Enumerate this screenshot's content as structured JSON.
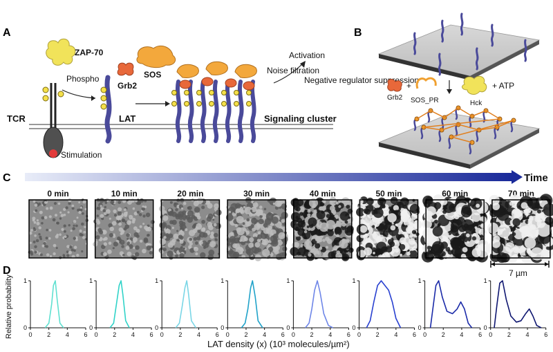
{
  "panels": {
    "a": "A",
    "b": "B",
    "c": "C",
    "d": "D"
  },
  "panel_a": {
    "zap70": "ZAP-70",
    "phospho": "Phospho",
    "grb2": "Grb2",
    "sos": "SOS",
    "tcr": "TCR",
    "lat": "LAT",
    "stimulation": "Stimulation",
    "noise_filtration": "Noise filtration",
    "activation": "Activation",
    "negative_regulator": "Negative regulator suppression",
    "signaling_cluster": "Signaling cluster",
    "p": "P"
  },
  "panel_b": {
    "grb2": "Grb2",
    "sos_pr": "SOS_PR",
    "hck": "Hck",
    "atp": "+ ATP",
    "plus": "+"
  },
  "panel_c": {
    "time_label": "Time",
    "timepoints": [
      "0 min",
      "10 min",
      "20 min",
      "30 min",
      "40 min",
      "50 min",
      "60 min",
      "70 min"
    ],
    "scale_bar": "7 µm"
  },
  "panel_d": {
    "ylabel": "Relative probability",
    "xlabel": "LAT density (x) (10³ molecules/µm²)"
  },
  "chart_data": {
    "type": "line",
    "panels": 8,
    "titles": [
      "0 min",
      "10 min",
      "20 min",
      "30 min",
      "40 min",
      "50 min",
      "60 min",
      "70 min"
    ],
    "xlabel": "LAT density (x) (10³ molecules/µm²)",
    "ylabel": "Relative probability",
    "xlim": [
      0,
      6
    ],
    "ylim": [
      0,
      1
    ],
    "xticks": [
      0,
      2,
      4,
      6
    ],
    "yticks": [
      0,
      1
    ],
    "grid": false,
    "series": [
      {
        "color": "#5fe0d0",
        "x": [
          1.6,
          2.0,
          2.3,
          2.5,
          2.7,
          2.9,
          3.2,
          3.6
        ],
        "y": [
          0.0,
          0.1,
          0.5,
          0.9,
          1.0,
          0.6,
          0.1,
          0.0
        ]
      },
      {
        "color": "#30d3c8",
        "x": [
          1.5,
          1.9,
          2.2,
          2.5,
          2.7,
          2.9,
          3.2,
          3.6
        ],
        "y": [
          0.0,
          0.1,
          0.5,
          0.9,
          1.0,
          0.7,
          0.15,
          0.0
        ]
      },
      {
        "color": "#7ad6e6",
        "x": [
          1.5,
          1.9,
          2.2,
          2.5,
          2.7,
          2.9,
          3.2,
          3.7
        ],
        "y": [
          0.0,
          0.1,
          0.45,
          0.85,
          1.0,
          0.7,
          0.15,
          0.0
        ]
      },
      {
        "color": "#1fa2c9",
        "x": [
          1.5,
          1.9,
          2.2,
          2.5,
          2.7,
          3.0,
          3.3,
          3.8
        ],
        "y": [
          0.0,
          0.1,
          0.4,
          0.85,
          1.0,
          0.65,
          0.15,
          0.0
        ]
      },
      {
        "color": "#6e86e8",
        "x": [
          1.3,
          1.7,
          2.0,
          2.3,
          2.6,
          2.9,
          3.3,
          3.8,
          4.3
        ],
        "y": [
          0.0,
          0.1,
          0.4,
          0.8,
          1.0,
          0.75,
          0.3,
          0.05,
          0.0
        ]
      },
      {
        "color": "#2840d0",
        "x": [
          0.8,
          1.2,
          1.6,
          2.0,
          2.4,
          2.8,
          3.2,
          3.6,
          4.0,
          4.5
        ],
        "y": [
          0.0,
          0.15,
          0.55,
          0.9,
          1.0,
          0.9,
          0.8,
          0.55,
          0.2,
          0.0
        ]
      },
      {
        "color": "#1a2aa8",
        "x": [
          0.6,
          0.9,
          1.2,
          1.5,
          1.9,
          2.4,
          3.0,
          3.5,
          3.9,
          4.3,
          4.7,
          5.1
        ],
        "y": [
          0.0,
          0.45,
          0.9,
          1.0,
          0.65,
          0.35,
          0.3,
          0.4,
          0.55,
          0.4,
          0.1,
          0.0
        ]
      },
      {
        "color": "#0e1670",
        "x": [
          0.4,
          0.7,
          1.0,
          1.3,
          1.7,
          2.2,
          2.8,
          3.3,
          3.8,
          4.2,
          4.6,
          5.0,
          5.5
        ],
        "y": [
          0.0,
          0.5,
          0.95,
          1.0,
          0.6,
          0.25,
          0.12,
          0.15,
          0.3,
          0.4,
          0.25,
          0.05,
          0.0
        ]
      }
    ]
  }
}
